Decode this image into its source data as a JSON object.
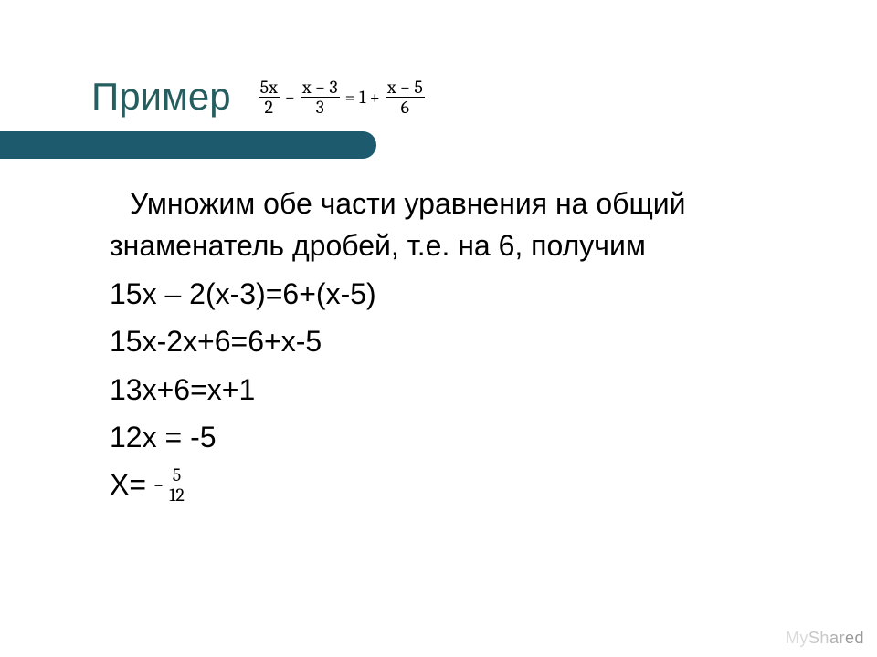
{
  "slide": {
    "title": "Пример",
    "title_color": "#265e5f",
    "title_fontsize": 42,
    "bar_color": "#1e5a6e",
    "background_color": "#ffffff",
    "body_fontsize": 32,
    "body_color": "#000000",
    "equation": {
      "font_family": "Cambria Math",
      "fontsize": 20,
      "color": "#000000",
      "terms": [
        {
          "type": "frac",
          "num": "5x",
          "den": "2"
        },
        {
          "type": "op",
          "text": "−"
        },
        {
          "type": "frac",
          "num": "x − 3",
          "den": "3"
        },
        {
          "type": "op",
          "text": "= 1 +"
        },
        {
          "type": "frac",
          "num": "x − 5",
          "den": "6"
        }
      ]
    },
    "body_lines": [
      "Умножим обе части уравнения на общий знаменатель дробей, т.е. на 6, получим",
      "15х – 2(х-3)=6+(х-5)",
      "15х-2х+6=6+х-5",
      "13х+6=х+1",
      "12х = -5"
    ],
    "answer": {
      "prefix": "Х=",
      "sign": "−",
      "num": "5",
      "den": "12"
    }
  },
  "watermark": {
    "text": "MyShared",
    "fontsize": 18
  }
}
